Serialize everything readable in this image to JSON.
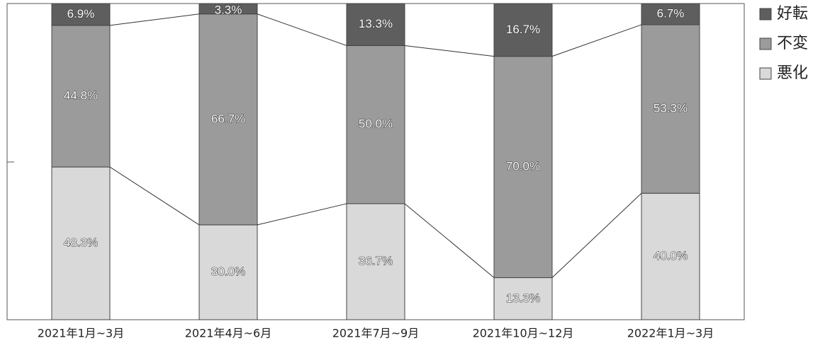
{
  "chart_data": {
    "type": "stacked-bar",
    "categories": [
      "2021年1月~3月",
      "2021年4月~6月",
      "2021年7月~9月",
      "2021年10月~12月",
      "2022年1月~3月"
    ],
    "ylim": [
      0,
      100
    ],
    "series": [
      {
        "name": "悪化",
        "color": "#d9d9d9",
        "values": [
          48.3,
          30.0,
          36.7,
          13.3,
          40.0
        ],
        "value_labels": [
          "48.3%",
          "30.0%",
          "36.7%",
          "13.3%",
          "40.0%"
        ]
      },
      {
        "name": "不変",
        "color": "#9b9b9b",
        "values": [
          44.8,
          66.7,
          50.0,
          70.0,
          53.3
        ],
        "value_labels": [
          "44.8%",
          "66.7%",
          "50.0%",
          "70.0%",
          "53.3%"
        ]
      },
      {
        "name": "好転",
        "color": "#5e5e5e",
        "values": [
          6.9,
          3.3,
          13.3,
          16.7,
          6.7
        ],
        "value_labels": [
          "6.9%",
          "3.3%",
          "13.3%",
          "16.7%",
          "6.7%"
        ]
      }
    ]
  }
}
